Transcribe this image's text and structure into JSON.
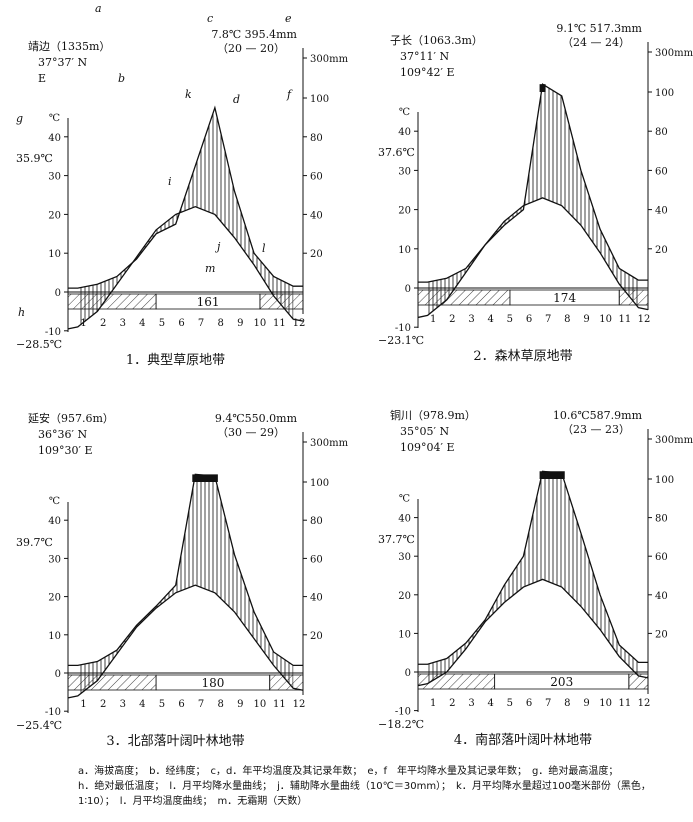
{
  "chart_data": [
    {
      "type": "climate-diagram",
      "caption": "1．典型草原地带",
      "station": "靖边（1335m）",
      "latitude": "37°37′ N",
      "longitude": "E",
      "summary_top": "7.8℃ 395.4mm",
      "summary_bottom": "（20 — 20）",
      "abs_max": "35.9℃",
      "abs_min": "−28.5℃",
      "frost_free_days": "161",
      "temp_ticks": [
        "-10",
        "0",
        "10",
        "20",
        "30",
        "40"
      ],
      "precip_ticks": [
        "20",
        "40",
        "60",
        "80",
        "100",
        "300mm"
      ],
      "months": [
        "1",
        "2",
        "3",
        "4",
        "5",
        "6",
        "7",
        "8",
        "9",
        "10",
        "11",
        "12"
      ],
      "temp_ylim": [
        -10,
        40
      ],
      "precip_ylim": [
        0,
        100
      ],
      "temperature": [
        -9,
        -5,
        2,
        9,
        16,
        20,
        22,
        20,
        14,
        7,
        -1,
        -7
      ],
      "precipitation": [
        2,
        4,
        8,
        17,
        30,
        35,
        65,
        95,
        52,
        20,
        8,
        3
      ],
      "frost_free_from_month": 4.5,
      "frost_free_to_month": 9.8,
      "letters": [
        "a",
        "b",
        "c",
        "d",
        "e",
        "f",
        "g",
        "h",
        "i",
        "j",
        "k",
        "l",
        "m"
      ]
    },
    {
      "type": "climate-diagram",
      "caption": "2．森林草原地带",
      "station": "子长（1063.3m）",
      "latitude": "37°11′ N",
      "longitude": "109°42′ E",
      "summary_top": "9.1℃ 517.3mm",
      "summary_bottom": "（24 — 24）",
      "abs_max": "37.6℃",
      "abs_min": "−23.1℃",
      "frost_free_days": "174",
      "temp_ticks": [
        "-10",
        "0",
        "10",
        "20",
        "30",
        "40"
      ],
      "precip_ticks": [
        "20",
        "40",
        "60",
        "80",
        "100",
        "300mm"
      ],
      "months": [
        "1",
        "2",
        "3",
        "4",
        "5",
        "6",
        "7",
        "8",
        "9",
        "10",
        "11",
        "12"
      ],
      "temp_ylim": [
        -10,
        40
      ],
      "precip_ylim": [
        0,
        100
      ],
      "temperature": [
        -7,
        -3,
        4,
        11,
        17,
        21,
        23,
        21,
        16,
        9,
        1,
        -5
      ],
      "precipitation": [
        3,
        5,
        10,
        22,
        32,
        40,
        104,
        98,
        60,
        30,
        10,
        4
      ],
      "frost_free_from_month": 4.8,
      "frost_free_to_month": 10.5
    },
    {
      "type": "climate-diagram",
      "caption": "3．北部落叶阔叶林地带",
      "station": "延安（957.6m）",
      "latitude": "36°36′ N",
      "longitude": "109°30′ E",
      "summary_top": "9.4℃550.0mm",
      "summary_bottom": "（30 — 29）",
      "abs_max": "39.7℃",
      "abs_min": "−25.4℃",
      "frost_free_days": "180",
      "temp_ticks": [
        "-10",
        "0",
        "10",
        "20",
        "30",
        "40"
      ],
      "precip_ticks": [
        "20",
        "40",
        "60",
        "80",
        "100",
        "300mm"
      ],
      "months": [
        "1",
        "2",
        "3",
        "4",
        "5",
        "6",
        "7",
        "8",
        "9",
        "10",
        "11",
        "12"
      ],
      "temp_ylim": [
        -10,
        40
      ],
      "precip_ylim": [
        0,
        100
      ],
      "temperature": [
        -6,
        -2,
        5,
        12,
        17,
        21,
        23,
        21,
        16,
        9,
        2,
        -4
      ],
      "precipitation": [
        4,
        6,
        12,
        25,
        35,
        46,
        104,
        103,
        62,
        32,
        11,
        4
      ],
      "frost_free_from_month": 4.5,
      "frost_free_to_month": 10.3
    },
    {
      "type": "climate-diagram",
      "caption": "4．南部落叶阔叶林地带",
      "station": "铜川（978.9m）",
      "latitude": "35°05′ N",
      "longitude": "109°04′ E",
      "summary_top": "10.6℃587.9mm",
      "summary_bottom": "（23 — 23）",
      "abs_max": "37.7℃",
      "abs_min": "−18.2℃",
      "frost_free_days": "203",
      "temp_ticks": [
        "-10",
        "0",
        "10",
        "20",
        "30",
        "40"
      ],
      "precip_ticks": [
        "20",
        "40",
        "60",
        "80",
        "100",
        "300mm"
      ],
      "months": [
        "1",
        "2",
        "3",
        "4",
        "5",
        "6",
        "7",
        "8",
        "9",
        "10",
        "11",
        "12"
      ],
      "temp_ylim": [
        -10,
        40
      ],
      "precip_ylim": [
        0,
        100
      ],
      "temperature": [
        -3,
        0,
        6,
        13,
        18,
        22,
        24,
        22,
        17,
        11,
        4,
        -1
      ],
      "precipitation": [
        4,
        7,
        15,
        27,
        45,
        60,
        104,
        103,
        72,
        40,
        14,
        5
      ],
      "frost_free_from_month": 4.0,
      "frost_free_to_month": 11.0
    }
  ],
  "legend": {
    "line1": "a．海拔高度；　b．经纬度；　c，d．年平均温度及其记录年数；　e，f　年平均降水量及其记录年数；　g．绝对最高温度；",
    "line2": "h．绝对最低温度；　l．月平均降水量曲线；　j．辅助降水量曲线（10℃＝30mm）；　k．月平均降水量超过100毫米部份（黑色，",
    "line3": "1∶10）；　l．月平均温度曲线；　m．无霜期（天数）"
  }
}
